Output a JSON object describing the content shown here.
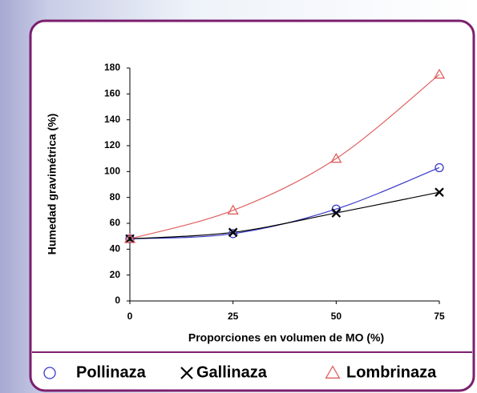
{
  "chart_data": {
    "type": "line",
    "x_label": "Proporciones en volumen de MO (%)",
    "y_label": "Humedad gravimétrica (%)",
    "x": [
      0,
      25,
      50,
      75
    ],
    "series": [
      {
        "name": "Pollinaza",
        "color": "#3a3ac8",
        "marker": "circle",
        "values": [
          48,
          52,
          71,
          103
        ]
      },
      {
        "name": "Gallinaza",
        "color": "#000000",
        "marker": "x",
        "values": [
          48,
          53,
          68,
          84
        ]
      },
      {
        "name": "Lombrinaza",
        "color": "#e06060",
        "marker": "triangle",
        "values": [
          48,
          70,
          110,
          175
        ]
      }
    ],
    "xlim": [
      0,
      75
    ],
    "xticks": [
      0,
      25,
      50,
      75
    ],
    "ylim": [
      0,
      180
    ],
    "yticks": [
      0,
      20,
      40,
      60,
      80,
      100,
      120,
      140,
      160,
      180
    ],
    "smooth": true,
    "legend": "bottom"
  }
}
